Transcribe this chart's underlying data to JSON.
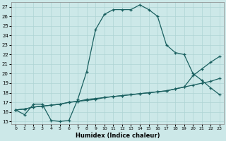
{
  "xlabel": "Humidex (Indice chaleur)",
  "bg_color": "#cce8e8",
  "grid_color": "#afd4d4",
  "line_color": "#1a6060",
  "xlim": [
    -0.5,
    23.5
  ],
  "ylim": [
    14.7,
    27.5
  ],
  "yticks": [
    15,
    16,
    17,
    18,
    19,
    20,
    21,
    22,
    23,
    24,
    25,
    26,
    27
  ],
  "xticks": [
    0,
    1,
    2,
    3,
    4,
    5,
    6,
    7,
    8,
    9,
    10,
    11,
    12,
    13,
    14,
    15,
    16,
    17,
    18,
    19,
    20,
    21,
    22,
    23
  ],
  "curve1_x": [
    0,
    1,
    2,
    3,
    4,
    5,
    6,
    7,
    8,
    9,
    10,
    11,
    12,
    13,
    14,
    15,
    16,
    17,
    18,
    19,
    20,
    21,
    22,
    23
  ],
  "curve1_y": [
    16.2,
    15.7,
    16.8,
    16.8,
    15.1,
    15.0,
    15.1,
    17.3,
    20.2,
    24.6,
    26.2,
    26.7,
    26.7,
    26.7,
    27.2,
    26.7,
    26.0,
    23.0,
    22.2,
    22.0,
    20.0,
    19.3,
    18.5,
    17.8
  ],
  "curve2_x": [
    0,
    1,
    2,
    3,
    4,
    5,
    6,
    7,
    8,
    9,
    10,
    11,
    12,
    13,
    14,
    15,
    16,
    17,
    18,
    19,
    20,
    21,
    22,
    23
  ],
  "curve2_y": [
    16.2,
    16.3,
    16.5,
    16.6,
    16.7,
    16.8,
    17.0,
    17.1,
    17.3,
    17.4,
    17.5,
    17.6,
    17.7,
    17.8,
    17.9,
    18.0,
    18.1,
    18.2,
    18.4,
    18.6,
    18.8,
    19.0,
    19.2,
    19.5
  ],
  "curve3_x": [
    0,
    1,
    2,
    3,
    4,
    5,
    6,
    7,
    8,
    9,
    10,
    11,
    12,
    13,
    14,
    15,
    16,
    17,
    18,
    19,
    20,
    21,
    22,
    23
  ],
  "curve3_y": [
    16.2,
    16.3,
    16.5,
    16.6,
    16.7,
    16.8,
    17.0,
    17.1,
    17.2,
    17.3,
    17.5,
    17.6,
    17.7,
    17.8,
    17.9,
    18.0,
    18.1,
    18.2,
    18.4,
    18.6,
    19.8,
    20.5,
    21.2,
    21.8
  ]
}
